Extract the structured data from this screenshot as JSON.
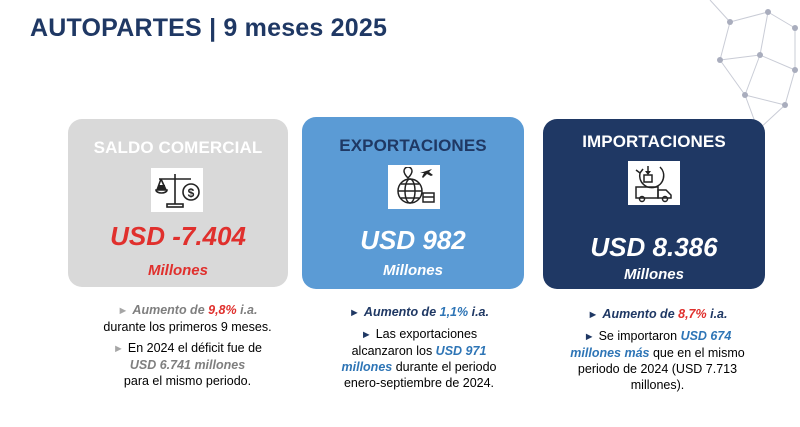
{
  "title": "AUTOPARTES | 9 meses 2025",
  "colors": {
    "navy": "#1f3864",
    "blue": "#5b9bd5",
    "gray": "#d9d9d9",
    "red": "#e0302d"
  },
  "cards": {
    "saldo": {
      "title": "SALDO COMERCIAL",
      "icon": "balance-scale-dollar-icon",
      "amount": "USD -7.404",
      "unit": "Millones",
      "bullets": {
        "b1_pre": "Aumento de ",
        "b1_value": "9,8%",
        "b1_suffix": " i.a.",
        "b1_rest": "durante los primeros 9 meses.",
        "b2_pre": "En 2024 el déficit fue de",
        "b2_value": "USD 6.741 millones",
        "b2_rest": "para el mismo periodo."
      }
    },
    "expo": {
      "title": "EXPORTACIONES",
      "icon": "globe-export-icon",
      "amount": "USD 982",
      "unit": "Millones",
      "bullets": {
        "b1_pre": "Aumento de ",
        "b1_value": "1,1%",
        "b1_suffix": " i.a.",
        "b2_pre": "Las exportaciones alcanzaron los ",
        "b2_value": "USD 971 millones",
        "b2_rest": " durante el periodo enero-septiembre de 2024."
      }
    },
    "impo": {
      "title": "IMPORTACIONES",
      "icon": "truck-import-icon",
      "amount": "USD 8.386",
      "unit": "Millones",
      "bullets": {
        "b1_pre": "Aumento de ",
        "b1_value": "8,7%",
        "b1_suffix": " i.a.",
        "b2_pre": "Se importaron ",
        "b2_value": "USD 674 millones más",
        "b2_rest": " que en el mismo periodo de 2024 (USD 7.713 millones)."
      }
    }
  }
}
